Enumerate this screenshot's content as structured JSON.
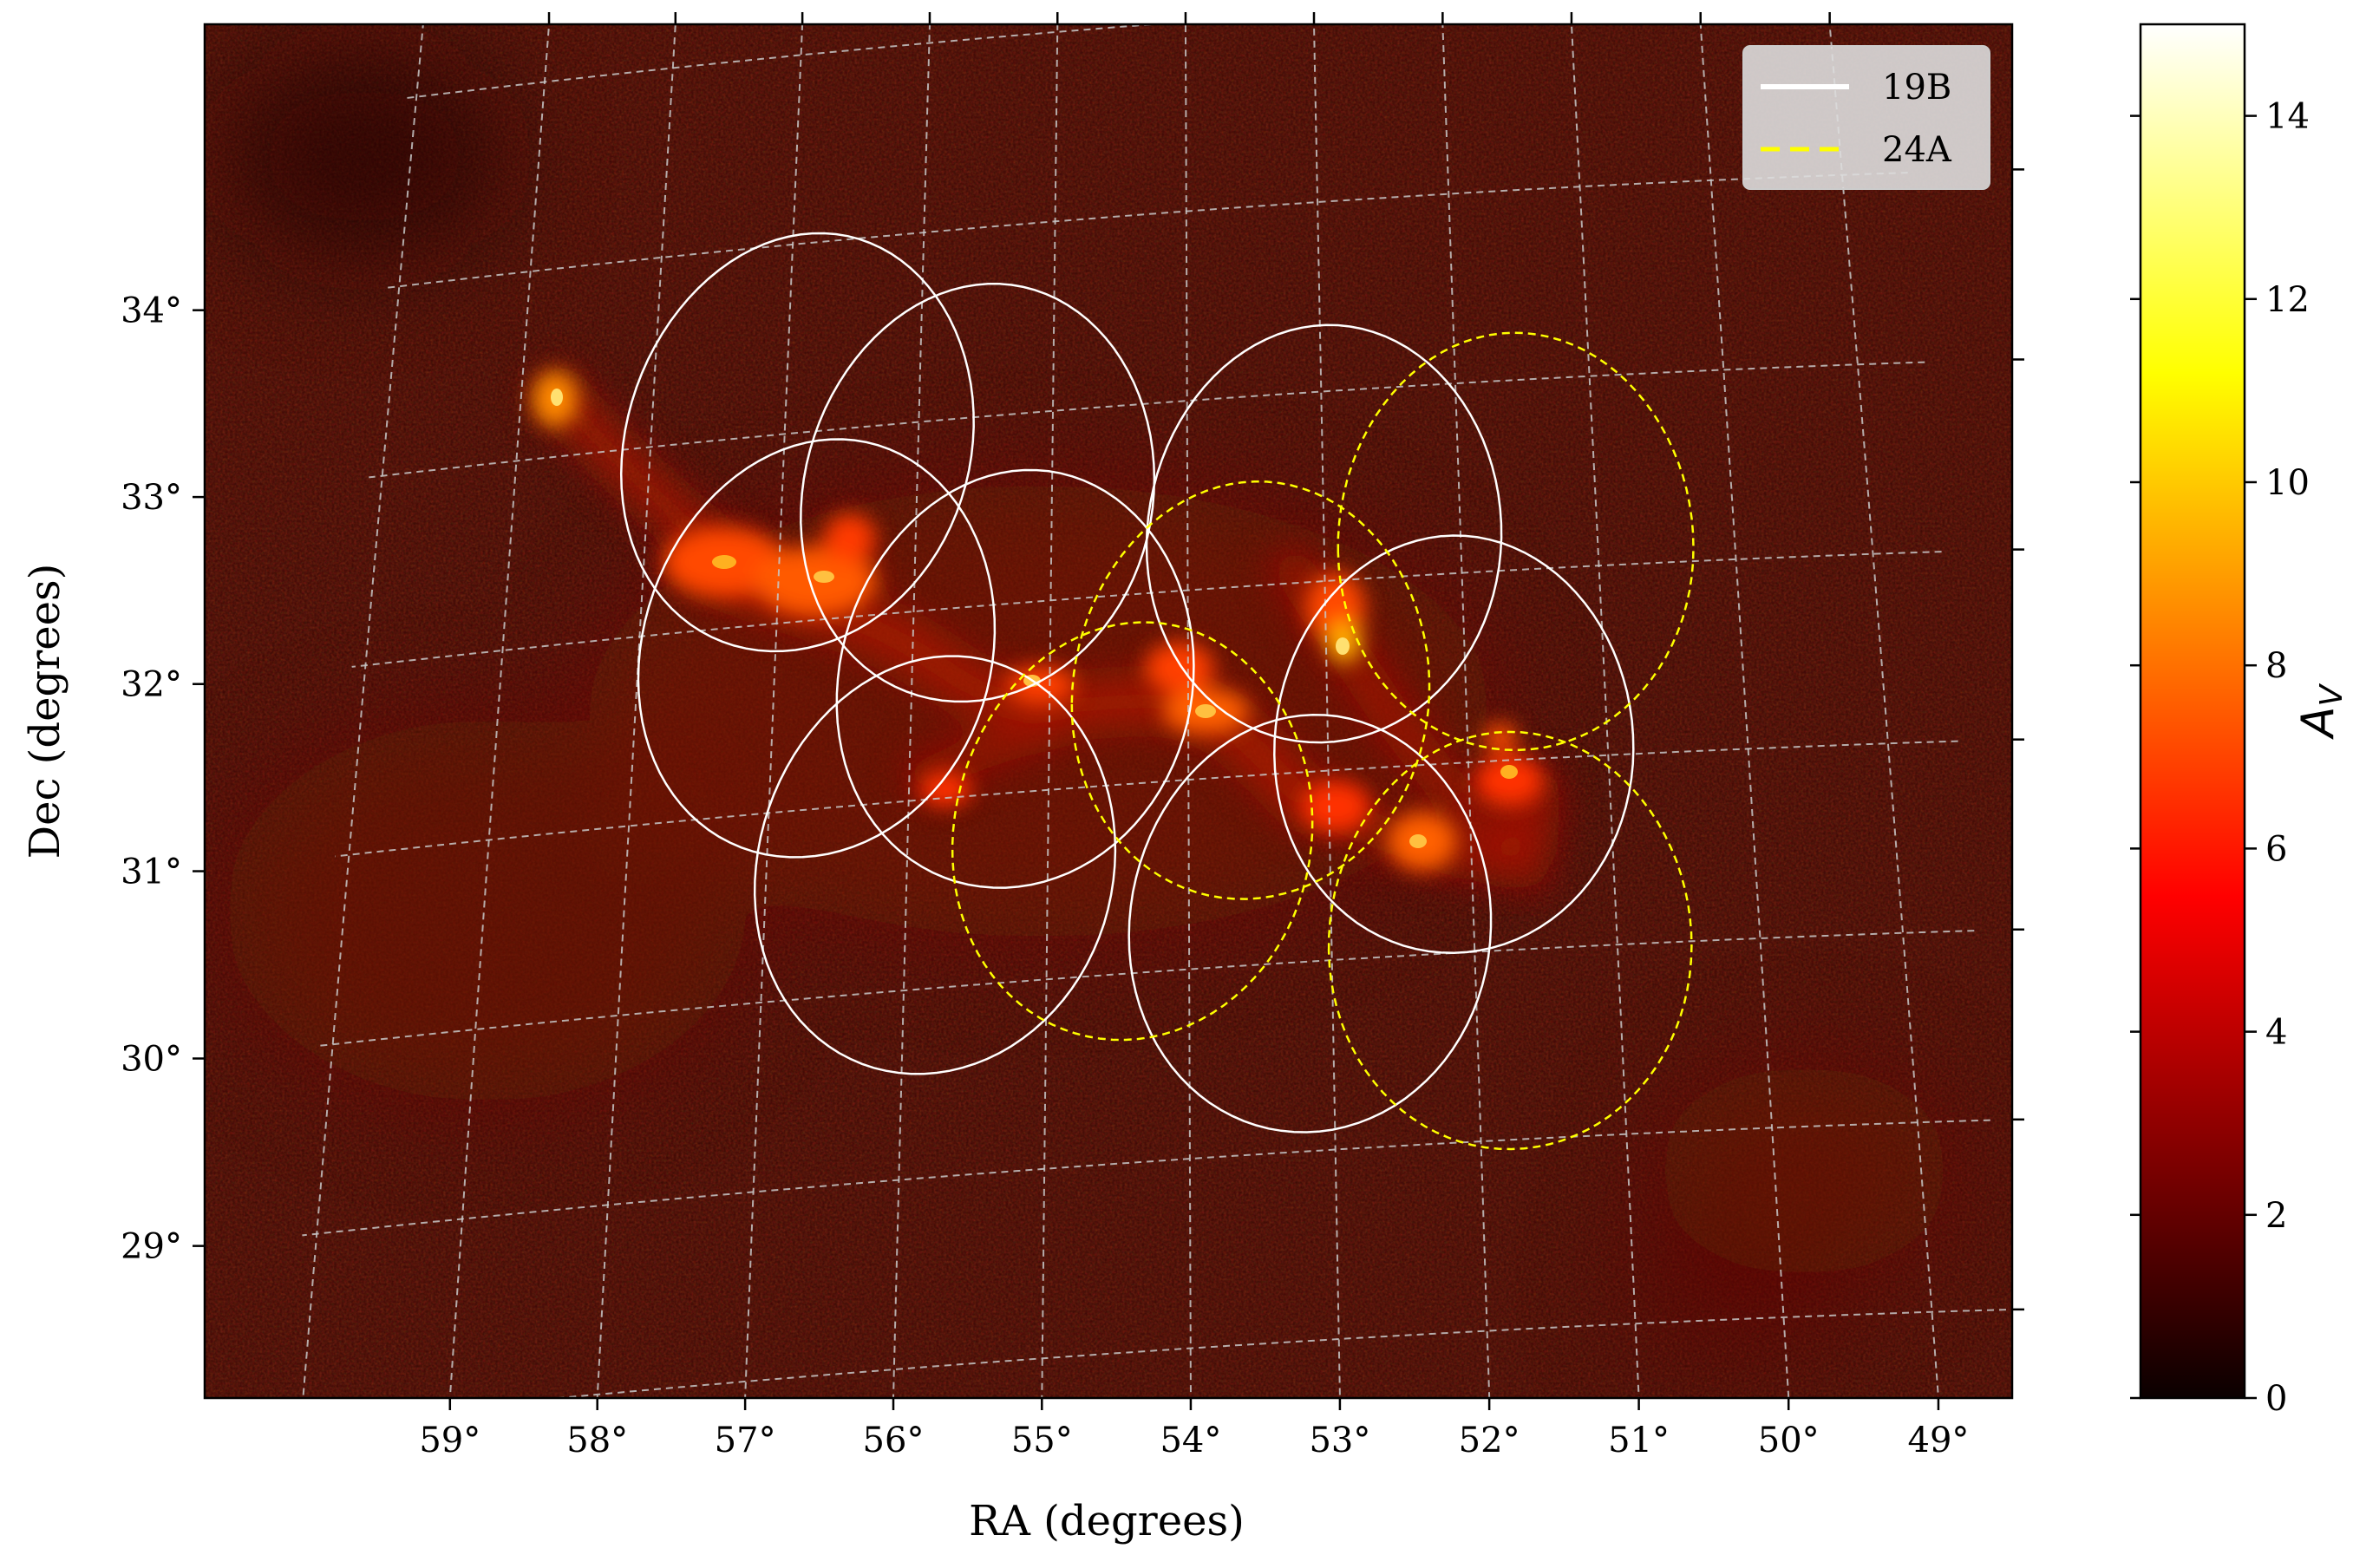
{
  "chart_data": {
    "type": "heatmap",
    "title": "",
    "xlabel": "RA (degrees)",
    "ylabel": "Dec (degrees)",
    "xlim": [
      59.5,
      49.0
    ],
    "ylim": [
      27.75,
      35.0
    ],
    "x_ticks": [
      59,
      58,
      57,
      56,
      55,
      54,
      53,
      52,
      51,
      50,
      49
    ],
    "x_tick_labels": [
      "59°",
      "58°",
      "57°",
      "56°",
      "55°",
      "54°",
      "53°",
      "52°",
      "51°",
      "50°",
      "49°"
    ],
    "y_ticks": [
      28,
      29,
      30,
      31,
      32,
      33,
      34
    ],
    "y_tick_labels": [
      "28°",
      "29°",
      "30°",
      "31°",
      "32°",
      "33°",
      "34°"
    ],
    "grid": true,
    "colormap": "hot",
    "colorbar": {
      "label": "A",
      "label_subscript": "V",
      "range": [
        0,
        15
      ],
      "ticks": [
        0,
        2,
        4,
        6,
        8,
        10,
        12,
        14
      ],
      "tick_labels": [
        "0",
        "2",
        "4",
        "6",
        "8",
        "10",
        "12",
        "14"
      ]
    },
    "legend": {
      "placement": "top-right",
      "entries": [
        {
          "label": "19B",
          "style": "solid",
          "color": "#ffffff"
        },
        {
          "label": "24A",
          "style": "dashed",
          "color": "#ffff00"
        }
      ]
    },
    "series": [
      {
        "name": "19B",
        "type": "circle-fields",
        "color": "#ffffff",
        "line_style": "solid",
        "radius_deg": 1.1,
        "centers": [
          [
            56.9,
            32.95
          ],
          [
            55.55,
            32.6
          ],
          [
            56.7,
            31.85
          ],
          [
            55.25,
            31.6
          ],
          [
            55.8,
            30.65
          ],
          [
            53.0,
            32.25
          ],
          [
            52.1,
            31.1
          ],
          [
            53.15,
            30.2
          ]
        ]
      },
      {
        "name": "24A",
        "type": "circle-fields",
        "color": "#ffff00",
        "line_style": "dashed",
        "radius_deg": 1.1,
        "centers": [
          [
            54.4,
            30.75
          ],
          [
            53.55,
            31.45
          ],
          [
            51.6,
            32.15
          ],
          [
            51.75,
            30.05
          ]
        ]
      }
    ]
  }
}
